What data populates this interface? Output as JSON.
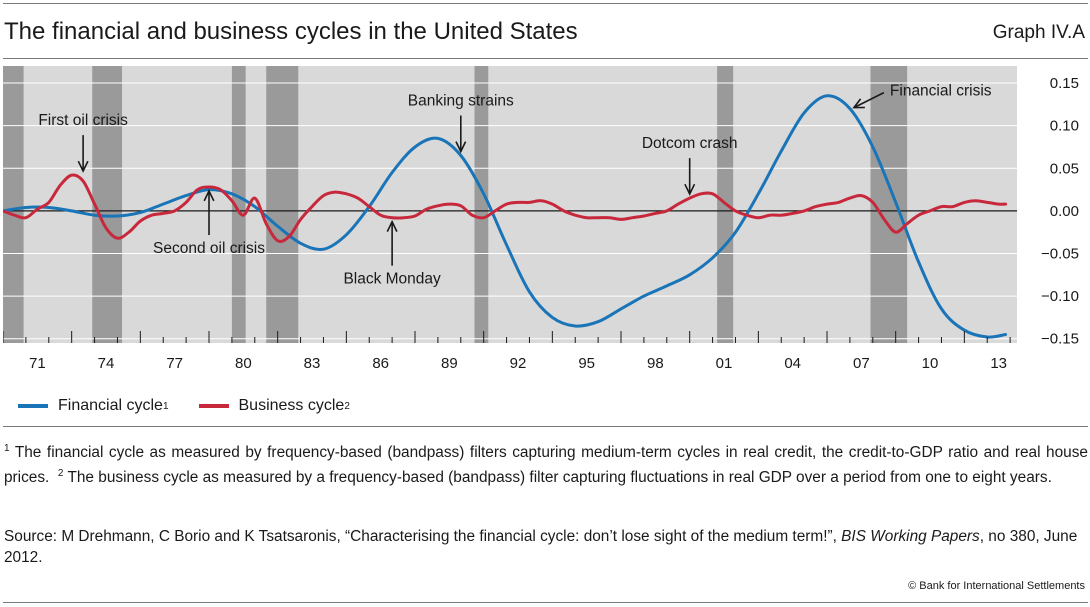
{
  "header": {
    "title": "The financial and business cycles in the United States",
    "graph_id": "Graph IV.A"
  },
  "legend": {
    "financial_label": "Financial cycle",
    "financial_note": "1",
    "business_label": "Business cycle",
    "business_note": "2"
  },
  "notes": {
    "note1_marker": "1",
    "note1_text": "The financial cycle as measured by frequency-based (bandpass) filters capturing medium-term cycles in real credit, the credit-to-GDP ratio and real house prices.",
    "note2_marker": "2",
    "note2_text": "The business cycle as measured by a frequency-based (bandpass) filter capturing fluctuations in real GDP over a period from one to eight years."
  },
  "source": {
    "prefix": "Source: M Drehmann, C Borio and K Tsatsaronis, “Characterising the financial cycle: don’t lose sight of the medium term!”, ",
    "journal": "BIS Working Papers",
    "suffix": ", no 380, June 2012."
  },
  "footer": {
    "copyright": "© Bank for International Settlements"
  },
  "colors": {
    "financial": "#1a74b8",
    "business": "#c8283c",
    "panel": "#d9d9d9",
    "recession": "#9a9a9a"
  },
  "chart_data": {
    "type": "line",
    "x_range": [
      1970.0,
      2014.3
    ],
    "ylim": [
      -0.155,
      0.17
    ],
    "y_ticks": [
      0.15,
      0.1,
      0.05,
      0.0,
      -0.05,
      -0.1,
      -0.15
    ],
    "y_tick_labels": [
      "0.15",
      "0.10",
      "0.05",
      "0.00",
      "−0.05",
      "−0.10",
      "−0.15"
    ],
    "x_ticks": [
      1971,
      1974,
      1977,
      1980,
      1983,
      1986,
      1989,
      1992,
      1995,
      1998,
      2001,
      2004,
      2007,
      2010,
      2013
    ],
    "x_tick_labels": [
      "71",
      "74",
      "77",
      "80",
      "83",
      "86",
      "89",
      "92",
      "95",
      "98",
      "01",
      "04",
      "07",
      "10",
      "13"
    ],
    "recessions": [
      [
        1969.9,
        1970.9
      ],
      [
        1973.9,
        1975.2
      ],
      [
        1980.0,
        1980.6
      ],
      [
        1981.5,
        1982.9
      ],
      [
        1990.6,
        1991.2
      ],
      [
        2001.2,
        2001.9
      ],
      [
        2007.9,
        2009.5
      ]
    ],
    "series": [
      {
        "name": "Financial cycle",
        "x": [
          1970.0,
          1971.0,
          1972.0,
          1973.0,
          1974.0,
          1975.0,
          1976.0,
          1977.0,
          1978.0,
          1979.0,
          1980.0,
          1981.0,
          1982.0,
          1983.0,
          1984.0,
          1985.0,
          1986.0,
          1987.0,
          1988.0,
          1989.0,
          1990.0,
          1991.0,
          1992.0,
          1993.0,
          1994.0,
          1995.0,
          1996.0,
          1997.0,
          1998.0,
          1999.0,
          2000.0,
          2001.0,
          2002.0,
          2003.0,
          2004.0,
          2005.0,
          2006.0,
          2007.0,
          2008.0,
          2009.0,
          2010.0,
          2011.0,
          2012.0,
          2013.0,
          2013.8
        ],
        "values": [
          0.0,
          0.004,
          0.004,
          0.0,
          -0.005,
          -0.006,
          -0.002,
          0.008,
          0.018,
          0.025,
          0.02,
          0.005,
          -0.018,
          -0.038,
          -0.045,
          -0.028,
          0.005,
          0.045,
          0.075,
          0.085,
          0.065,
          0.02,
          -0.04,
          -0.095,
          -0.125,
          -0.135,
          -0.13,
          -0.115,
          -0.1,
          -0.088,
          -0.075,
          -0.055,
          -0.025,
          0.02,
          0.07,
          0.115,
          0.135,
          0.12,
          0.075,
          0.01,
          -0.06,
          -0.115,
          -0.14,
          -0.148,
          -0.145
        ]
      },
      {
        "name": "Business cycle",
        "x": [
          1970.0,
          1970.5,
          1971.0,
          1971.5,
          1972.0,
          1972.5,
          1973.0,
          1973.5,
          1974.0,
          1974.5,
          1975.0,
          1975.5,
          1976.0,
          1976.5,
          1977.0,
          1977.5,
          1978.0,
          1978.5,
          1979.0,
          1979.5,
          1980.0,
          1980.5,
          1981.0,
          1981.5,
          1982.0,
          1982.5,
          1983.0,
          1983.5,
          1984.0,
          1984.5,
          1985.0,
          1985.5,
          1986.0,
          1986.5,
          1987.0,
          1987.5,
          1988.0,
          1988.5,
          1989.0,
          1989.5,
          1990.0,
          1990.5,
          1991.0,
          1991.5,
          1992.0,
          1992.5,
          1993.0,
          1993.5,
          1994.0,
          1994.5,
          1995.0,
          1995.5,
          1996.0,
          1996.5,
          1997.0,
          1997.5,
          1998.0,
          1998.5,
          1999.0,
          1999.5,
          2000.0,
          2000.5,
          2001.0,
          2001.5,
          2002.0,
          2002.5,
          2003.0,
          2003.5,
          2004.0,
          2004.5,
          2005.0,
          2005.5,
          2006.0,
          2006.5,
          2007.0,
          2007.5,
          2008.0,
          2008.5,
          2009.0,
          2009.5,
          2010.0,
          2010.5,
          2011.0,
          2011.5,
          2012.0,
          2012.5,
          2013.0,
          2013.5,
          2013.8
        ],
        "values": [
          0.0,
          -0.005,
          -0.008,
          0.002,
          0.01,
          0.03,
          0.042,
          0.035,
          0.008,
          -0.02,
          -0.032,
          -0.025,
          -0.012,
          -0.005,
          -0.003,
          0.0,
          0.01,
          0.025,
          0.028,
          0.025,
          0.012,
          -0.005,
          0.015,
          -0.015,
          -0.035,
          -0.03,
          -0.01,
          0.005,
          0.018,
          0.022,
          0.02,
          0.015,
          0.005,
          -0.005,
          -0.008,
          -0.008,
          -0.006,
          0.002,
          0.006,
          0.008,
          0.006,
          -0.005,
          -0.008,
          0.0,
          0.008,
          0.01,
          0.01,
          0.012,
          0.008,
          0.0,
          -0.005,
          -0.008,
          -0.008,
          -0.008,
          -0.01,
          -0.008,
          -0.006,
          -0.003,
          0.0,
          0.008,
          0.015,
          0.02,
          0.02,
          0.01,
          0.0,
          -0.005,
          -0.008,
          -0.005,
          -0.005,
          -0.003,
          0.0,
          0.005,
          0.008,
          0.01,
          0.015,
          0.018,
          0.01,
          -0.01,
          -0.025,
          -0.015,
          -0.005,
          0.0,
          0.005,
          0.005,
          0.01,
          0.012,
          0.01,
          0.008,
          0.008
        ]
      }
    ],
    "annotations": [
      {
        "text": "First oil crisis",
        "x": 1973.5,
        "y": 0.042,
        "direction": "down"
      },
      {
        "text": "Second oil crisis",
        "x": 1979.0,
        "y": 0.028,
        "direction": "up"
      },
      {
        "text": "Black Monday",
        "x": 1987.0,
        "y": -0.008,
        "direction": "up"
      },
      {
        "text": "Banking strains",
        "x": 1990.0,
        "y": 0.065,
        "direction": "down"
      },
      {
        "text": "Dotcom crash",
        "x": 2000.0,
        "y": 0.015,
        "direction": "down"
      },
      {
        "text": "Financial crisis",
        "x": 2007.0,
        "y": 0.12,
        "direction": "left"
      }
    ]
  }
}
